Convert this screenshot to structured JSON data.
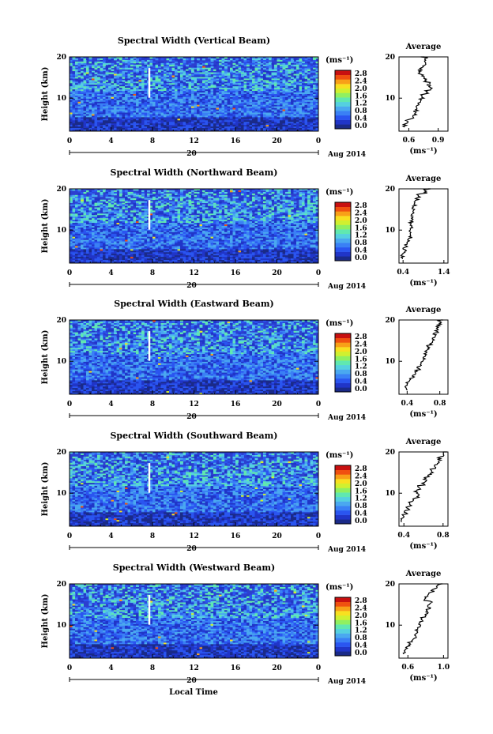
{
  "figure": {
    "xlabel": "Local Time",
    "date_label": "Aug 2014",
    "day_label": "20",
    "ylabel": "Height (km)",
    "colorbar_unit": "(ms⁻¹)",
    "avg_title": "Average",
    "avg_xlabel": "(ms⁻¹)",
    "colorbar_ticks": [
      "0.0",
      "0.4",
      "0.8",
      "1.2",
      "1.6",
      "2.0",
      "2.4",
      "2.8"
    ],
    "colormap": [
      "#1a2a88",
      "#2035c8",
      "#2a55f0",
      "#3a80f5",
      "#4aa8f0",
      "#55d0e0",
      "#60e8b0",
      "#90f060",
      "#d0f030",
      "#f8e020",
      "#f8a018",
      "#f05010",
      "#c81010"
    ]
  },
  "chart_data": [
    {
      "type": "heatmap",
      "title": "Spectral Width (Vertical Beam)",
      "x_ticks": [
        "0",
        "4",
        "8",
        "12",
        "16",
        "20",
        "0"
      ],
      "xlim": [
        0,
        24
      ],
      "y_ticks": [
        "20",
        "10"
      ],
      "ylim": [
        2,
        20
      ],
      "clim": [
        0.0,
        2.8
      ],
      "average_profile": {
        "title": "Average",
        "x_ticks": [
          "0.6",
          "0.9"
        ],
        "xlim": [
          0.5,
          1.0
        ],
        "y_ticks": [
          "20",
          "10"
        ],
        "height_km": [
          3,
          4,
          5,
          6,
          7,
          8,
          9,
          10,
          11,
          12,
          13,
          14,
          15,
          16,
          17,
          18,
          19,
          20
        ],
        "width": [
          0.56,
          0.58,
          0.63,
          0.66,
          0.68,
          0.69,
          0.71,
          0.74,
          0.78,
          0.82,
          0.8,
          0.76,
          0.74,
          0.71,
          0.73,
          0.76,
          0.78,
          0.74
        ]
      }
    },
    {
      "type": "heatmap",
      "title": "Spectral Width (Northward Beam)",
      "x_ticks": [
        "0",
        "4",
        "8",
        "12",
        "16",
        "20",
        "0"
      ],
      "xlim": [
        0,
        24
      ],
      "y_ticks": [
        "20",
        "10"
      ],
      "ylim": [
        2,
        20
      ],
      "clim": [
        0.0,
        2.8
      ],
      "average_profile": {
        "title": "Average",
        "x_ticks": [
          "0.4",
          "1.4"
        ],
        "xlim": [
          0.3,
          1.5
        ],
        "y_ticks": [
          "20",
          "10"
        ],
        "height_km": [
          3,
          4,
          5,
          6,
          7,
          8,
          9,
          10,
          11,
          12,
          13,
          14,
          15,
          16,
          17,
          18,
          19,
          20
        ],
        "width": [
          0.38,
          0.4,
          0.44,
          0.48,
          0.54,
          0.58,
          0.56,
          0.6,
          0.58,
          0.62,
          0.64,
          0.62,
          0.66,
          0.7,
          0.74,
          0.78,
          0.95,
          1.05
        ]
      }
    },
    {
      "type": "heatmap",
      "title": "Spectral Width (Eastward Beam)",
      "x_ticks": [
        "0",
        "4",
        "8",
        "12",
        "16",
        "20",
        "0"
      ],
      "xlim": [
        0,
        24
      ],
      "y_ticks": [
        "20",
        "10"
      ],
      "ylim": [
        2,
        20
      ],
      "clim": [
        0.0,
        2.8
      ],
      "average_profile": {
        "title": "Average",
        "x_ticks": [
          "0.4",
          "0.8"
        ],
        "xlim": [
          0.3,
          0.9
        ],
        "y_ticks": [
          "20",
          "10"
        ],
        "height_km": [
          3,
          4,
          5,
          6,
          7,
          8,
          9,
          10,
          11,
          12,
          13,
          14,
          15,
          16,
          17,
          18,
          19,
          20
        ],
        "width": [
          0.38,
          0.4,
          0.44,
          0.48,
          0.5,
          0.54,
          0.58,
          0.6,
          0.62,
          0.64,
          0.66,
          0.7,
          0.72,
          0.74,
          0.76,
          0.78,
          0.8,
          0.82
        ]
      }
    },
    {
      "type": "heatmap",
      "title": "Spectral Width (Southward Beam)",
      "x_ticks": [
        "0",
        "4",
        "8",
        "12",
        "16",
        "20",
        "0"
      ],
      "xlim": [
        0,
        24
      ],
      "y_ticks": [
        "20",
        "10"
      ],
      "ylim": [
        2,
        20
      ],
      "clim": [
        0.0,
        2.8
      ],
      "average_profile": {
        "title": "Average",
        "x_ticks": [
          "0.4",
          "0.8"
        ],
        "xlim": [
          0.35,
          0.85
        ],
        "y_ticks": [
          "20",
          "10"
        ],
        "height_km": [
          3,
          4,
          5,
          6,
          7,
          8,
          9,
          10,
          11,
          12,
          13,
          14,
          15,
          16,
          17,
          18,
          19,
          20
        ],
        "width": [
          0.38,
          0.4,
          0.42,
          0.44,
          0.46,
          0.5,
          0.54,
          0.52,
          0.56,
          0.6,
          0.62,
          0.66,
          0.68,
          0.72,
          0.74,
          0.76,
          0.8,
          0.82
        ]
      }
    },
    {
      "type": "heatmap",
      "title": "Spectral Width (Westward Beam)",
      "x_ticks": [
        "0",
        "4",
        "8",
        "12",
        "16",
        "20",
        "0"
      ],
      "xlim": [
        0,
        24
      ],
      "y_ticks": [
        "20",
        "10"
      ],
      "ylim": [
        2,
        20
      ],
      "clim": [
        0.0,
        2.8
      ],
      "average_profile": {
        "title": "Average",
        "x_ticks": [
          "0.6",
          "1.0"
        ],
        "xlim": [
          0.5,
          1.05
        ],
        "y_ticks": [
          "20",
          "10"
        ],
        "height_km": [
          3,
          4,
          5,
          6,
          7,
          8,
          9,
          10,
          11,
          12,
          13,
          14,
          15,
          16,
          17,
          18,
          19,
          20
        ],
        "width": [
          0.56,
          0.58,
          0.62,
          0.66,
          0.68,
          0.7,
          0.72,
          0.74,
          0.76,
          0.8,
          0.82,
          0.84,
          0.86,
          0.8,
          0.84,
          0.88,
          0.94,
          0.98
        ]
      }
    }
  ]
}
